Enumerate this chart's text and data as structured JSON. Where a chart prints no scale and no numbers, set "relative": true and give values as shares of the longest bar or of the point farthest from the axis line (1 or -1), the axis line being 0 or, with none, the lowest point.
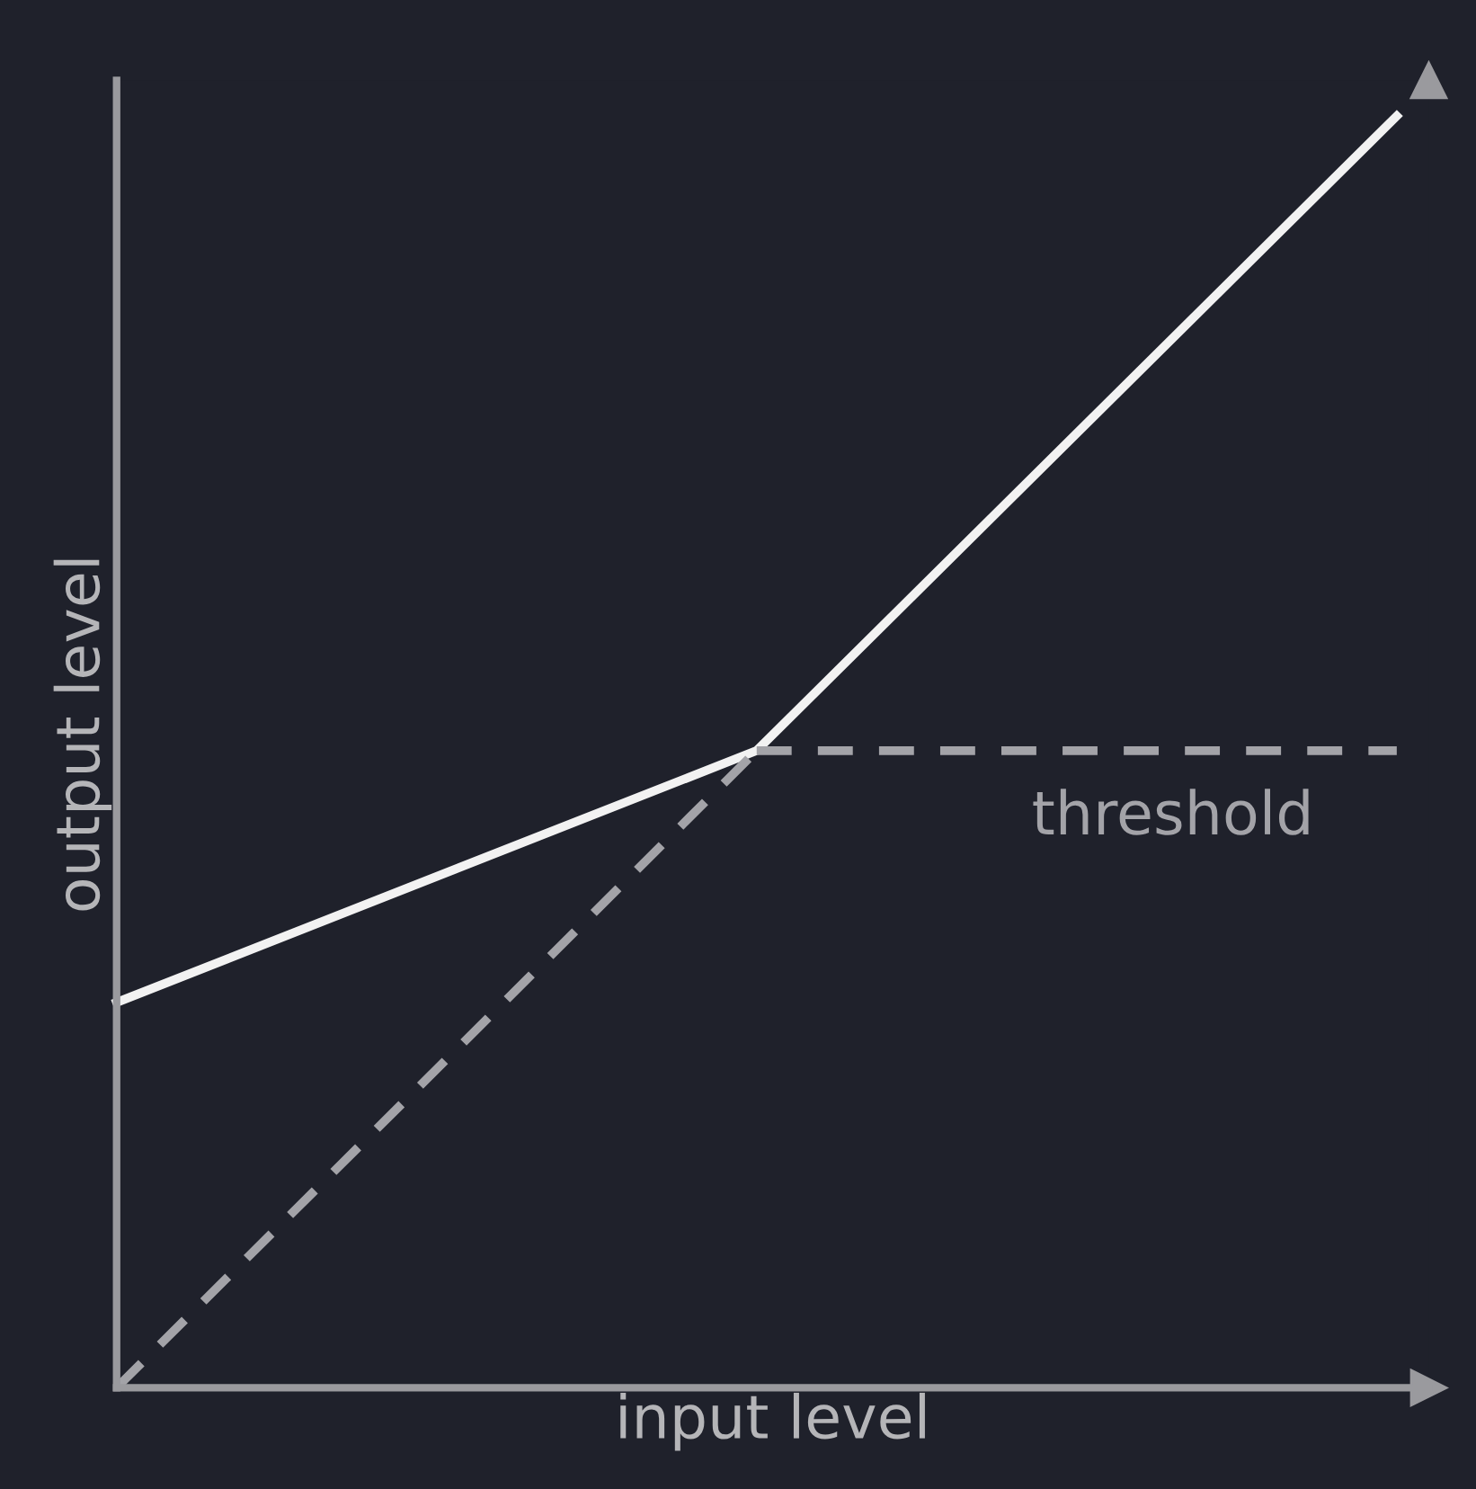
{
  "chart_data": {
    "type": "line",
    "relative": true,
    "xlabel": "input level",
    "ylabel": "output level",
    "categories": [
      null,
      null,
      null
    ],
    "series": [
      {
        "color": "#f2f2f2",
        "values": [
          0.303,
          0.501,
          1
        ],
        "line_style": "solid"
      },
      {
        "color": "#a3a3a8",
        "values": [
          0,
          0.501,
          null
        ],
        "line_style": "dashed"
      },
      {
        "name": "threshold",
        "color": "#a3a3a8",
        "values": [
          null,
          0.501,
          0.501
        ],
        "line_style": "dashed"
      }
    ],
    "legend": false,
    "marker": "none"
  }
}
